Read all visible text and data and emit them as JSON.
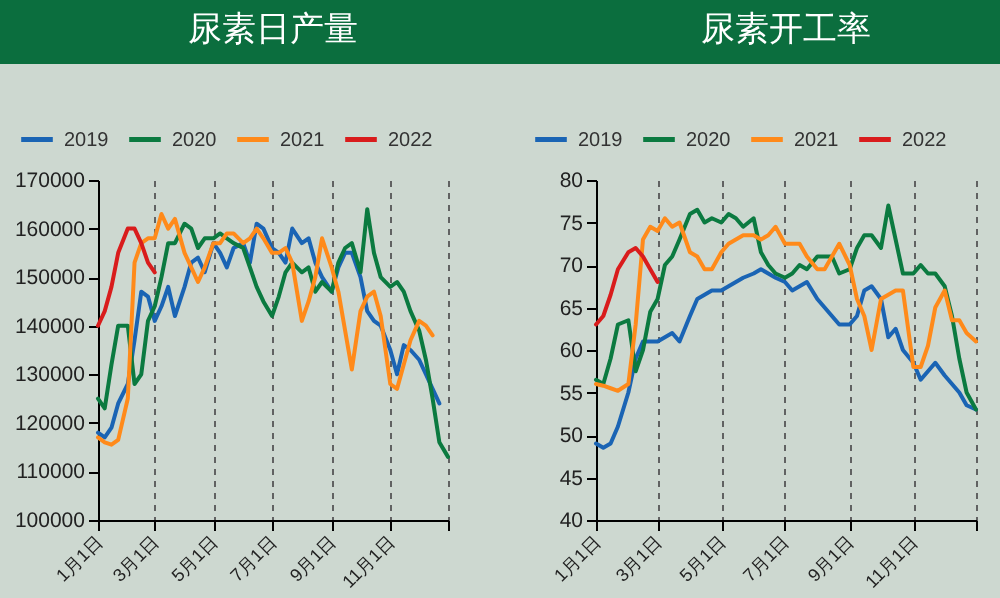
{
  "chart_data": [
    {
      "type": "line",
      "title": "尿素日产量",
      "legend": "top",
      "grid": "x",
      "line_style": "solid",
      "x": [
        "--01-01",
        "--01-08",
        "--01-15",
        "--01-22",
        "--02-01",
        "--02-08",
        "--02-15",
        "--02-22",
        "--03-01",
        "--03-08",
        "--03-15",
        "--03-22",
        "--04-01",
        "--04-08",
        "--04-15",
        "--04-22",
        "--05-01",
        "--05-08",
        "--05-15",
        "--05-22",
        "--06-01",
        "--06-08",
        "--06-15",
        "--06-22",
        "--07-01",
        "--07-08",
        "--07-15",
        "--07-22",
        "--08-01",
        "--08-08",
        "--08-15",
        "--08-22",
        "--09-01",
        "--09-08",
        "--09-15",
        "--09-22",
        "--10-01",
        "--10-08",
        "--10-15",
        "--10-22",
        "--11-01",
        "--11-08",
        "--11-15",
        "--11-22",
        "--12-01",
        "--12-08",
        "--12-15",
        "--12-22",
        "--12-31"
      ],
      "xlim": [
        "--01-01",
        "--12-31"
      ],
      "xticks": [
        {
          "value": "--01-01",
          "label": "1月1日"
        },
        {
          "value": "--03-01",
          "label": "3月1日"
        },
        {
          "value": "--05-01",
          "label": "5月1日"
        },
        {
          "value": "--07-01",
          "label": "7月1日"
        },
        {
          "value": "--09-01",
          "label": "9月1日"
        },
        {
          "value": "--11-01",
          "label": "11月1日"
        },
        {
          "value": "--12-31",
          "label": null
        }
      ],
      "ylim": [
        100000,
        170000
      ],
      "yticks": [
        100000,
        110000,
        120000,
        130000,
        140000,
        150000,
        160000,
        170000
      ],
      "series": [
        {
          "name": "2019",
          "color": "#1a64b4",
          "values": [
            118000,
            117000,
            119000,
            124000,
            128000,
            137000,
            147000,
            146000,
            141000,
            144000,
            148000,
            142000,
            148000,
            153000,
            154000,
            151000,
            157000,
            155000,
            152000,
            156000,
            157000,
            153000,
            161000,
            160000,
            156000,
            155000,
            153000,
            160000,
            157000,
            158000,
            153000,
            150000,
            147000,
            152000,
            155000,
            155000,
            150000,
            143000,
            141000,
            140000,
            135000,
            130000,
            136000,
            135000,
            133000,
            130000,
            127000,
            124000,
            null
          ]
        },
        {
          "name": "2020",
          "color": "#0b7a40",
          "values": [
            125000,
            123000,
            132000,
            140000,
            140000,
            128000,
            130000,
            141000,
            144000,
            150000,
            157000,
            157000,
            161000,
            160000,
            156000,
            158000,
            158000,
            159000,
            158000,
            157000,
            156000,
            152000,
            148000,
            145000,
            142000,
            146000,
            151000,
            153000,
            151000,
            152000,
            147000,
            149000,
            147000,
            153000,
            156000,
            157000,
            151000,
            164000,
            155000,
            150000,
            148000,
            149000,
            147000,
            143000,
            139000,
            133000,
            125000,
            116000,
            113000
          ]
        },
        {
          "name": "2021",
          "color": "#ff8a1a",
          "values": [
            117000,
            116000,
            115500,
            116500,
            125000,
            153000,
            157000,
            158000,
            158000,
            163000,
            160000,
            162000,
            155000,
            152000,
            149000,
            152000,
            157000,
            157000,
            159000,
            159000,
            157000,
            158000,
            160000,
            158000,
            155000,
            155000,
            156000,
            153000,
            141000,
            145000,
            150000,
            158000,
            152000,
            147000,
            139000,
            131000,
            143000,
            146000,
            147000,
            142000,
            128000,
            127000,
            132000,
            137000,
            141000,
            140000,
            138000,
            null,
            null
          ]
        },
        {
          "name": "2022",
          "color": "#d91c1c",
          "values": [
            140000,
            143000,
            148000,
            155000,
            160000,
            160000,
            157000,
            153000,
            151000,
            null,
            null,
            null,
            null,
            null,
            null,
            null,
            null,
            null,
            null,
            null,
            null,
            null,
            null,
            null,
            null,
            null,
            null,
            null,
            null,
            null,
            null,
            null,
            null,
            null,
            null,
            null,
            null,
            null,
            null,
            null,
            null,
            null,
            null,
            null,
            null,
            null,
            null,
            null,
            null
          ]
        }
      ]
    },
    {
      "type": "line",
      "title": "尿素开工率",
      "legend": "top",
      "grid": "x",
      "line_style": "solid",
      "x": [
        "--01-01",
        "--01-08",
        "--01-15",
        "--01-22",
        "--02-01",
        "--02-08",
        "--02-15",
        "--02-22",
        "--03-01",
        "--03-08",
        "--03-15",
        "--03-22",
        "--04-01",
        "--04-08",
        "--04-15",
        "--04-22",
        "--05-01",
        "--05-08",
        "--05-15",
        "--05-22",
        "--06-01",
        "--06-08",
        "--06-15",
        "--06-22",
        "--07-01",
        "--07-08",
        "--07-15",
        "--07-22",
        "--08-01",
        "--08-08",
        "--08-15",
        "--08-22",
        "--09-01",
        "--09-08",
        "--09-15",
        "--09-22",
        "--10-01",
        "--10-08",
        "--10-15",
        "--10-22",
        "--11-01",
        "--11-08",
        "--11-15",
        "--11-22",
        "--12-01",
        "--12-08",
        "--12-15",
        "--12-22",
        "--12-31"
      ],
      "xlim": [
        "--01-01",
        "--12-31"
      ],
      "xticks": [
        {
          "value": "--01-01",
          "label": "1月1日"
        },
        {
          "value": "--03-01",
          "label": "3月1日"
        },
        {
          "value": "--05-01",
          "label": "5月1日"
        },
        {
          "value": "--07-01",
          "label": "7月1日"
        },
        {
          "value": "--09-01",
          "label": "9月1日"
        },
        {
          "value": "--11-01",
          "label": "11月1日"
        },
        {
          "value": "--12-31",
          "label": null
        }
      ],
      "ylim": [
        40,
        80
      ],
      "yticks": [
        40,
        45,
        50,
        55,
        60,
        65,
        70,
        75,
        80
      ],
      "series": [
        {
          "name": "2019",
          "color": "#1a64b4",
          "values": [
            49,
            48.5,
            49,
            51,
            55,
            59,
            61,
            61,
            61,
            61.5,
            62,
            61,
            64,
            66,
            66.5,
            67,
            67,
            67.5,
            68,
            68.5,
            69,
            69.5,
            69,
            68.5,
            68,
            67,
            67.5,
            68,
            66,
            65,
            64,
            63,
            63,
            64,
            67,
            67.5,
            66,
            61.5,
            62.5,
            60,
            58.5,
            56.5,
            57.5,
            58.5,
            57,
            56,
            55,
            53.5,
            53
          ]
        },
        {
          "name": "2020",
          "color": "#0b7a40",
          "values": [
            56.5,
            56,
            59,
            63,
            63.5,
            57.5,
            60,
            64.5,
            66,
            70,
            71,
            73,
            76,
            76.5,
            75,
            75.5,
            75,
            76,
            75.5,
            74.5,
            75.5,
            71.5,
            70,
            69,
            68.5,
            69,
            70,
            69.5,
            71,
            71,
            71,
            69,
            69.5,
            72,
            73.5,
            73.5,
            72,
            77,
            73,
            69,
            69,
            70,
            69,
            69,
            67.5,
            64,
            59,
            55,
            53
          ]
        },
        {
          "name": "2021",
          "color": "#ff8a1a",
          "values": [
            56,
            55.8,
            55.5,
            55.2,
            56,
            63,
            73,
            74.5,
            74,
            75.5,
            74.5,
            75,
            71.5,
            71,
            69.5,
            69.5,
            71.5,
            72.5,
            73,
            73.5,
            73.5,
            73,
            73.5,
            74.5,
            72.5,
            72.5,
            72.5,
            71,
            69.5,
            69.5,
            71,
            72.5,
            70,
            66,
            64,
            60,
            66,
            66.5,
            67,
            67,
            58,
            58,
            60.5,
            65,
            67,
            63.5,
            63.5,
            62,
            61
          ]
        },
        {
          "name": "2022",
          "color": "#d91c1c",
          "values": [
            63,
            64,
            66.5,
            69.5,
            71.5,
            72,
            71,
            69.5,
            68,
            null,
            null,
            null,
            null,
            null,
            null,
            null,
            null,
            null,
            null,
            null,
            null,
            null,
            null,
            null,
            null,
            null,
            null,
            null,
            null,
            null,
            null,
            null,
            null,
            null,
            null,
            null,
            null,
            null,
            null,
            null,
            null,
            null,
            null,
            null,
            null,
            null,
            null,
            null,
            null
          ]
        }
      ]
    }
  ]
}
